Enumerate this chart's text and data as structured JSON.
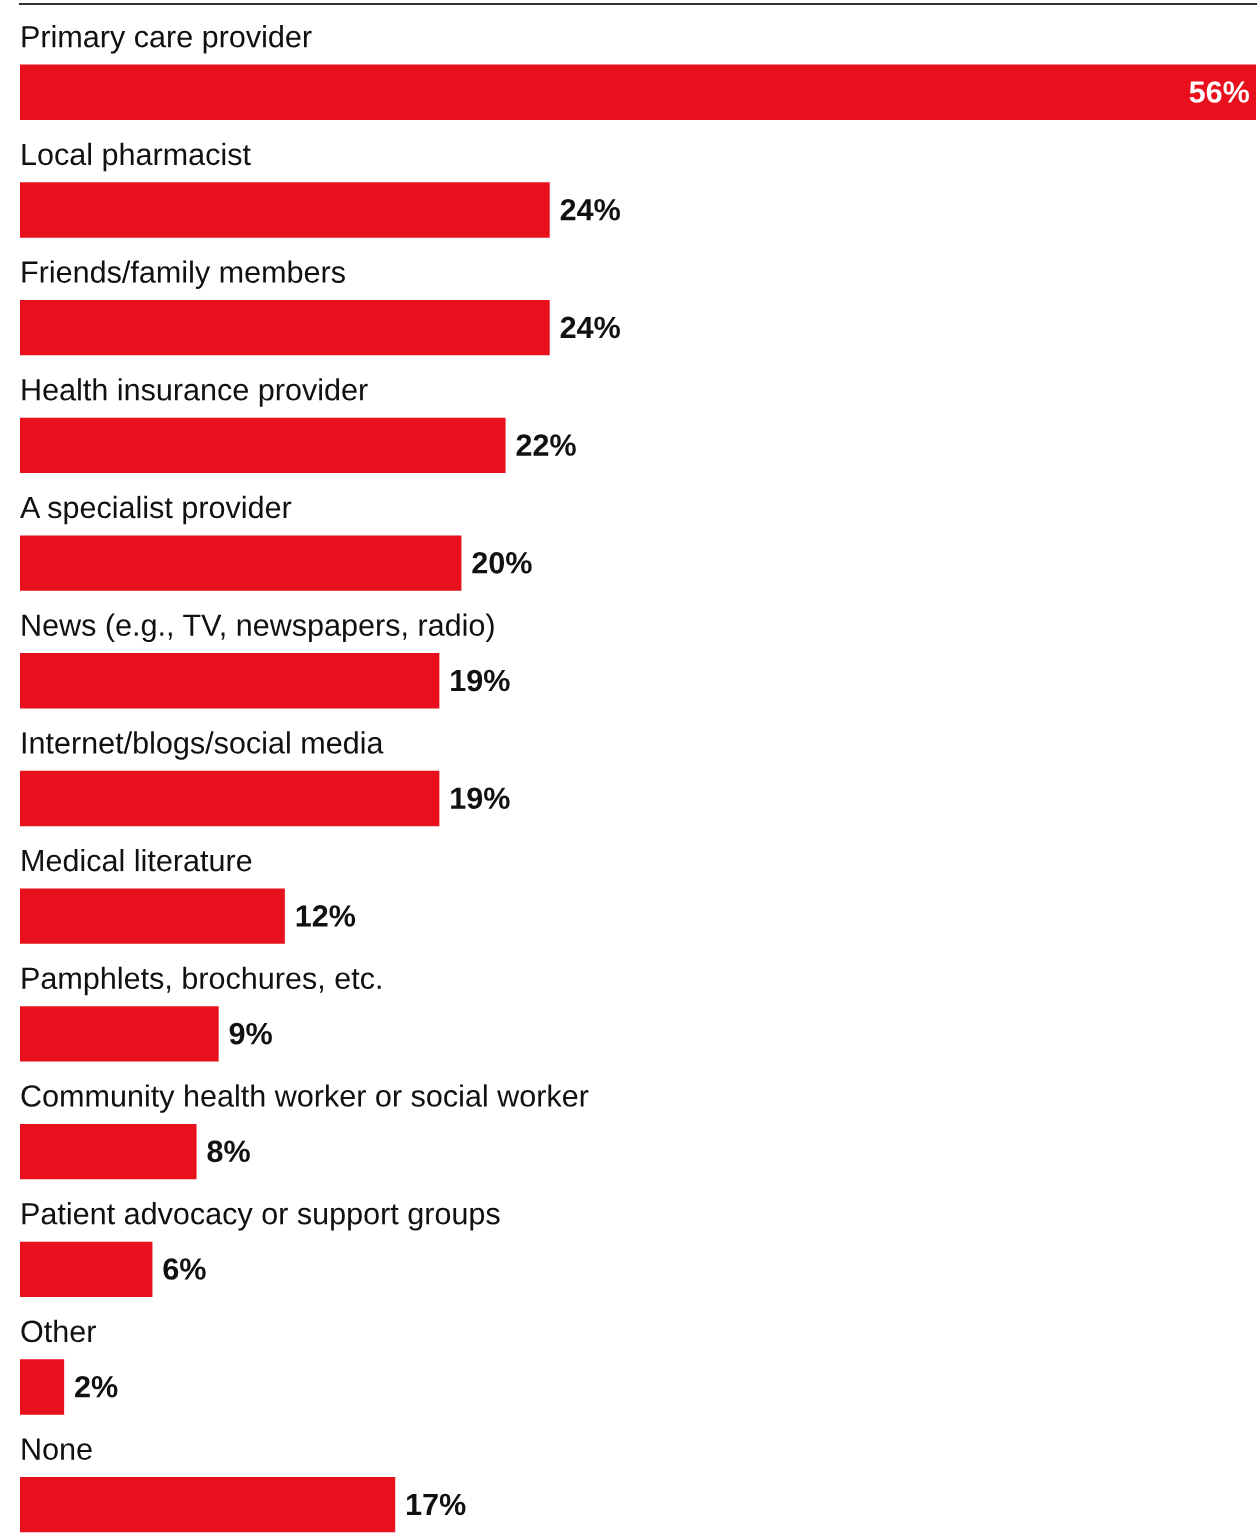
{
  "chart_data": {
    "type": "bar",
    "orientation": "horizontal",
    "categories": [
      "Primary care provider",
      "Local pharmacist",
      "Friends/family members",
      "Health insurance provider",
      "A specialist provider",
      "News (e.g., TV, newspapers, radio)",
      "Internet/blogs/social media",
      "Medical literature",
      "Pamphlets, brochures, etc.",
      "Community health worker or social worker",
      "Patient advocacy or support groups",
      "Other",
      "None"
    ],
    "values": [
      56,
      24,
      24,
      22,
      20,
      19,
      19,
      12,
      9,
      8,
      6,
      2,
      17
    ],
    "value_labels": [
      "56%",
      "24%",
      "24%",
      "22%",
      "20%",
      "19%",
      "19%",
      "12%",
      "9%",
      "8%",
      "6%",
      "2%",
      "17%"
    ],
    "color": "#e8101c"
  }
}
